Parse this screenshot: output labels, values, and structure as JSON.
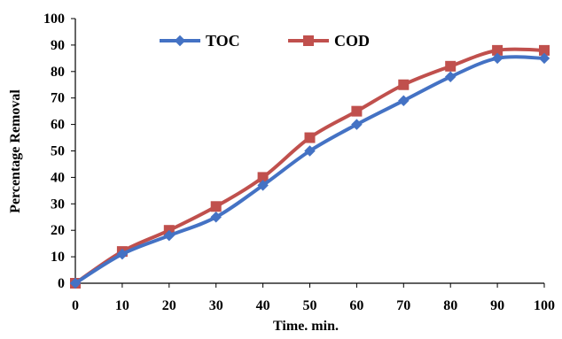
{
  "chart_data": {
    "type": "line",
    "title": "",
    "xlabel": "Time. min.",
    "ylabel": "Percentage Removal",
    "x": [
      0,
      10,
      20,
      30,
      40,
      50,
      60,
      70,
      80,
      90,
      100
    ],
    "x_ticks": [
      "0",
      "10",
      "20",
      "30",
      "40",
      "50",
      "60",
      "70",
      "80",
      "90",
      "100"
    ],
    "y_ticks": [
      "0",
      "10",
      "20",
      "30",
      "40",
      "50",
      "60",
      "70",
      "80",
      "90",
      "100"
    ],
    "xlim": [
      0,
      100
    ],
    "ylim": [
      0,
      100
    ],
    "grid": false,
    "legend_position": "top",
    "series": [
      {
        "name": "TOC",
        "color": "#4472C4",
        "marker": "diamond",
        "values": [
          0,
          11,
          18,
          25,
          37,
          50,
          60,
          69,
          78,
          85,
          85
        ]
      },
      {
        "name": "COD",
        "color": "#C0504D",
        "marker": "square",
        "values": [
          0,
          12,
          20,
          29,
          40,
          55,
          65,
          75,
          82,
          88,
          88
        ]
      }
    ]
  }
}
